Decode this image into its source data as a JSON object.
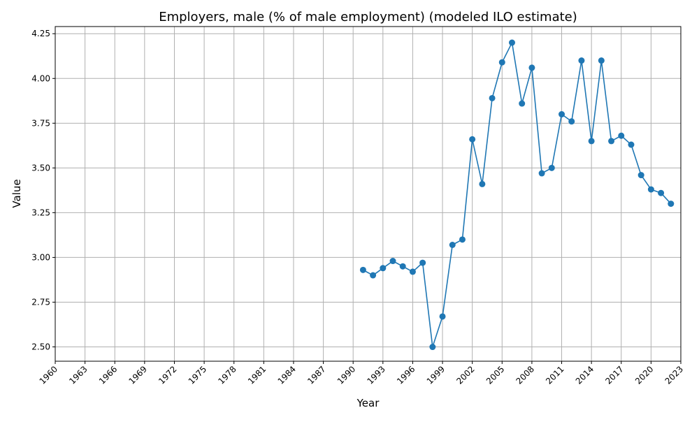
{
  "chart_data": {
    "type": "line",
    "title": "Employers, male (% of male employment) (modeled ILO estimate)",
    "xlabel": "Year",
    "ylabel": "Value",
    "xlim": [
      1960,
      2023
    ],
    "ylim": [
      2.42,
      4.29
    ],
    "x_ticks": [
      1960,
      1963,
      1966,
      1969,
      1972,
      1975,
      1978,
      1981,
      1984,
      1987,
      1990,
      1993,
      1996,
      1999,
      2002,
      2005,
      2008,
      2011,
      2014,
      2017,
      2020,
      2023
    ],
    "y_ticks": [
      2.5,
      2.75,
      3.0,
      3.25,
      3.5,
      3.75,
      4.0,
      4.25
    ],
    "grid": true,
    "series": [
      {
        "color": "#1f77b4",
        "x": [
          1991,
          1992,
          1993,
          1994,
          1995,
          1996,
          1997,
          1998,
          1999,
          2000,
          2001,
          2002,
          2003,
          2004,
          2005,
          2006,
          2007,
          2008,
          2009,
          2010,
          2011,
          2012,
          2013,
          2014,
          2015,
          2016,
          2017,
          2018,
          2019,
          2020,
          2021,
          2022
        ],
        "y": [
          2.93,
          2.9,
          2.94,
          2.98,
          2.95,
          2.92,
          2.97,
          2.5,
          2.67,
          3.07,
          3.1,
          3.66,
          3.41,
          3.89,
          4.09,
          4.2,
          3.86,
          4.06,
          3.47,
          3.5,
          3.8,
          3.76,
          4.1,
          3.65,
          4.1,
          3.65,
          3.68,
          3.63,
          3.46,
          3.38,
          3.36,
          3.3
        ]
      }
    ]
  }
}
